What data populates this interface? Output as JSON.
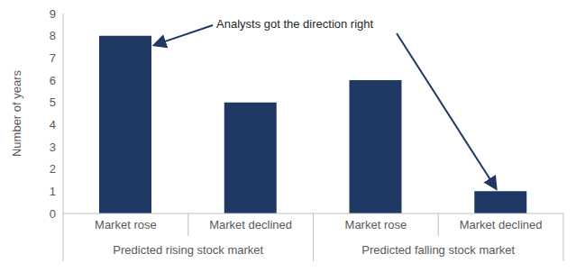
{
  "chart_data": {
    "type": "bar",
    "categories": [
      "Market rose",
      "Market declined",
      "Market rose",
      "Market declined"
    ],
    "groups": [
      "Predicted rising stock market",
      "Predicted falling stock market"
    ],
    "values": [
      8,
      5,
      6,
      1
    ],
    "color": "#1f3864",
    "y_label": "Number of years",
    "annotation": "Analysts got the direction right",
    "ylim": [
      0,
      9
    ],
    "yticks": [
      0,
      1,
      2,
      3,
      4,
      5,
      6,
      7,
      8,
      9
    ],
    "grid": false
  }
}
